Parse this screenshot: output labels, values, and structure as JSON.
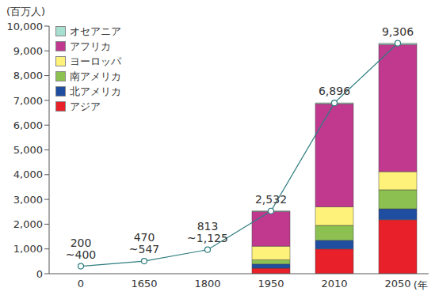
{
  "chart_data": {
    "type": "bar",
    "stacked": true,
    "y_label": "(百万人)",
    "x_label": "(年)",
    "categories": [
      "0",
      "1650",
      "1800",
      "1950",
      "2010",
      "2050"
    ],
    "series": [
      {
        "name": "アジア",
        "color": "#e8202a",
        "values": [
          null,
          null,
          null,
          220,
          1000,
          2180
        ]
      },
      {
        "name": "北アメリカ",
        "color": "#1f4ea1",
        "values": [
          null,
          null,
          null,
          170,
          350,
          440
        ]
      },
      {
        "name": "南アメリカ",
        "color": "#8cc152",
        "values": [
          null,
          null,
          null,
          170,
          600,
          770
        ]
      },
      {
        "name": "ヨーロッパ",
        "color": "#fff27a",
        "values": [
          null,
          null,
          null,
          550,
          750,
          730
        ]
      },
      {
        "name": "アフリカ",
        "color": "#c0398f",
        "values": [
          null,
          null,
          null,
          1400,
          4160,
          5130
        ]
      },
      {
        "name": "オセアニア",
        "color": "#a8e0d0",
        "values": [
          null,
          null,
          null,
          22,
          36,
          56
        ]
      },
      {
        "type": "line",
        "color": "#2e7d7f",
        "marker": "circle",
        "data_labels": true,
        "values": [
          300,
          508,
          969,
          2532,
          6896,
          9306
        ],
        "value_labels": [
          "200\n~400",
          "470\n~547",
          "813\n~1,125",
          "2,532",
          "6,896",
          "9,306"
        ]
      }
    ],
    "legend": "upper left",
    "grid": false,
    "ylim": [
      0,
      10000
    ],
    "yticks": [
      0,
      {
        "value": 1000,
        "label": "1,000"
      },
      {
        "value": 2000,
        "label": "2,000"
      },
      {
        "value": 3000,
        "label": "3,000"
      },
      {
        "value": 4000,
        "label": "4,000"
      },
      {
        "value": 5000,
        "label": "5,000"
      },
      {
        "value": 6000,
        "label": "6,000"
      },
      {
        "value": 7000,
        "label": "7,000"
      },
      {
        "value": 8000,
        "label": "8,000"
      },
      {
        "value": 9000,
        "label": "9,000"
      },
      {
        "value": 10000,
        "label": "10,000"
      }
    ]
  }
}
